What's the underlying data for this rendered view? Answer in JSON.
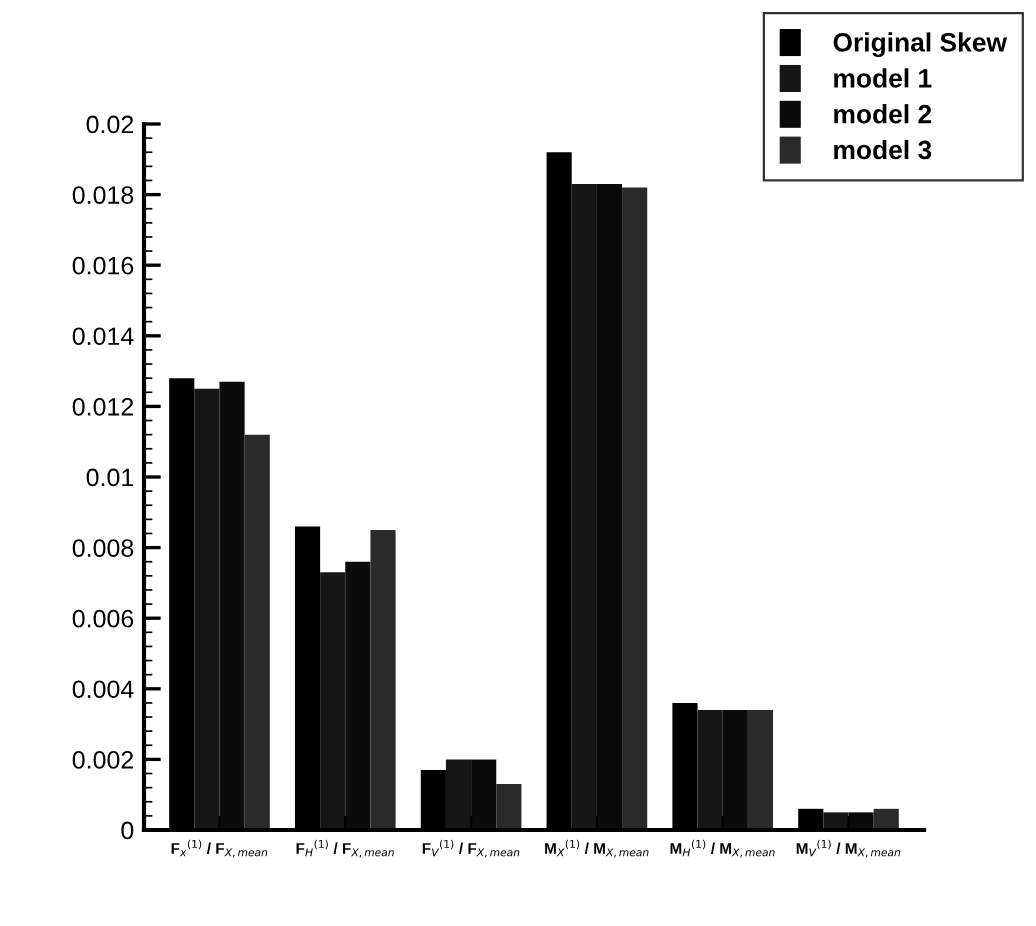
{
  "chart_data": {
    "type": "bar",
    "categories": [
      "F$_{x}$$^{(1)}$ / F$_{X,mean}$",
      "F$_{H}$$^{(1)}$ / F$_{X,mean}$",
      "F$_{V}$$^{(1)}$ / F$_{X,mean}$",
      "M$_{X}$$^{(1)}$ / M$_{X,mean}$",
      "M$_{H}$$^{(1)}$ / M$_{X,mean}$",
      "M$_{V}$$^{(1)}$ / M$_{X,mean}$"
    ],
    "series": [
      {
        "name": "Original Skew",
        "color": "#000000",
        "values": [
          0.0128,
          0.0086,
          0.0017,
          0.0192,
          0.0036,
          0.0006
        ]
      },
      {
        "name": "model 1",
        "color": "#161616",
        "values": [
          0.0125,
          0.0073,
          0.002,
          0.0183,
          0.0034,
          0.0005
        ]
      },
      {
        "name": "model 2",
        "color": "#0b0b0b",
        "values": [
          0.0127,
          0.0076,
          0.002,
          0.0183,
          0.0034,
          0.0005
        ]
      },
      {
        "name": "model 3",
        "color": "#2a2a2a",
        "values": [
          0.0112,
          0.0085,
          0.0013,
          0.0182,
          0.0034,
          0.0006
        ]
      }
    ],
    "ylim": [
      0,
      0.02
    ],
    "yticks": [
      0,
      0.002,
      0.004,
      0.006,
      0.008,
      0.01,
      0.012,
      0.014,
      0.016,
      0.018,
      0.02
    ],
    "grid": false,
    "legend": "top right"
  }
}
